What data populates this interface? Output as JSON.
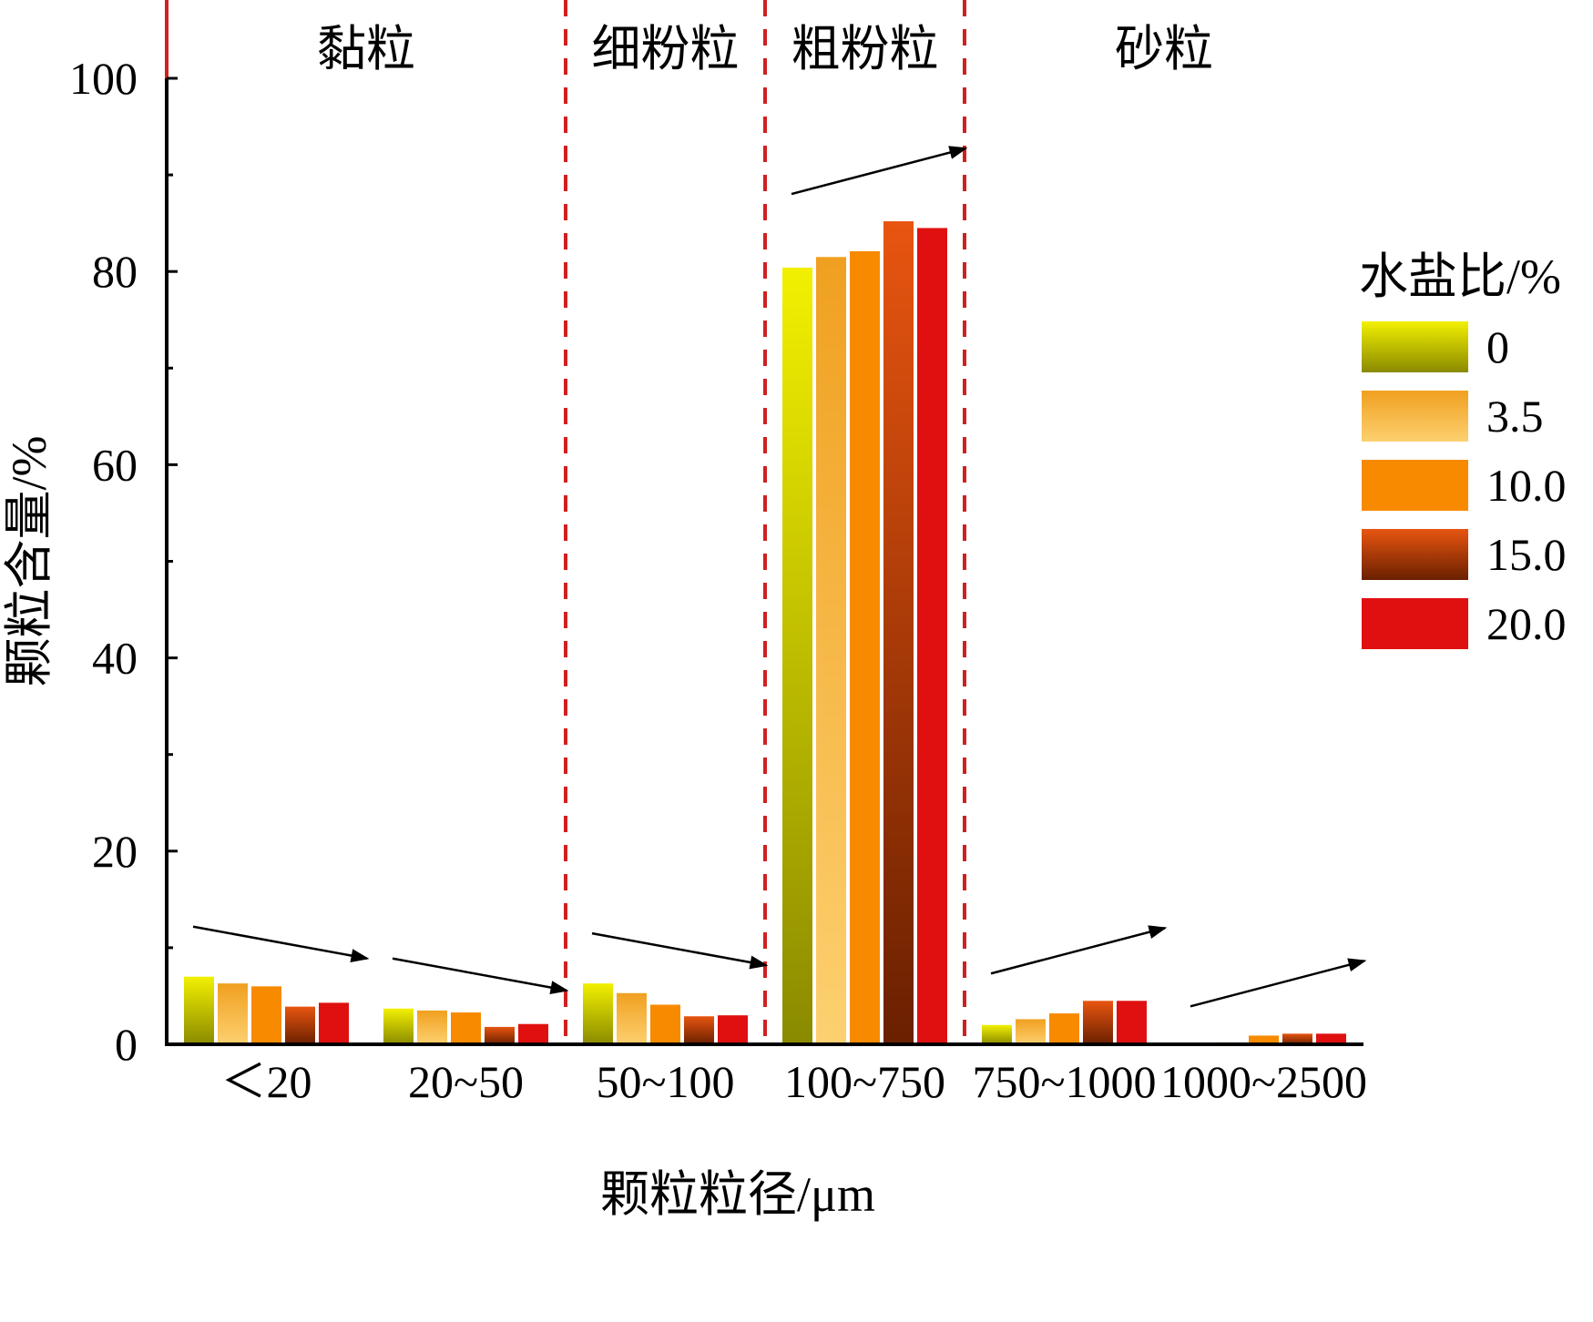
{
  "chart_data": {
    "type": "bar",
    "xlabel": "颗粒粒径/μm",
    "ylabel": "颗粒含量/%",
    "ylim": [
      0,
      100
    ],
    "yticks": [
      0,
      20,
      40,
      60,
      80,
      100
    ],
    "categories": [
      "＜20",
      "20~50",
      "50~100",
      "100~750",
      "750~1000",
      "1000~2500"
    ],
    "legend_title": "水盐比/%",
    "legend_position": "right",
    "series": [
      {
        "name": "0",
        "values": [
          7.0,
          3.7,
          6.3,
          80.4,
          2.0,
          0.1
        ],
        "color_top": "#f2f000",
        "color_bottom": "#8a8a00"
      },
      {
        "name": "3.5",
        "values": [
          6.3,
          3.5,
          5.3,
          81.5,
          2.6,
          0.2
        ],
        "color_top": "#f0a020",
        "color_bottom": "#fdd070"
      },
      {
        "name": "10.0",
        "values": [
          6.0,
          3.3,
          4.1,
          82.1,
          3.2,
          0.9
        ],
        "color_top": "#f88a00",
        "color_bottom": "#f88a00"
      },
      {
        "name": "15.0",
        "values": [
          3.9,
          1.8,
          2.9,
          85.2,
          4.5,
          1.1
        ],
        "color_top": "#e85510",
        "color_bottom": "#6a2000"
      },
      {
        "name": "20.0",
        "values": [
          4.3,
          2.1,
          3.0,
          84.5,
          4.5,
          1.1
        ],
        "color_top": "#e01010",
        "color_bottom": "#e01010"
      }
    ],
    "regions": [
      {
        "label": "黏粒",
        "from": 0,
        "to": 2
      },
      {
        "label": "细粉粒",
        "from": 2,
        "to": 3
      },
      {
        "label": "粗粉粒",
        "from": 3,
        "to": 4
      },
      {
        "label": "砂粒",
        "from": 4,
        "to": 6
      }
    ],
    "divider_color": "#d02020",
    "trend_arrows": [
      {
        "category": 0,
        "direction": "down"
      },
      {
        "category": 1,
        "direction": "down"
      },
      {
        "category": 2,
        "direction": "down"
      },
      {
        "category": 3,
        "direction": "up"
      },
      {
        "category": 4,
        "direction": "up"
      },
      {
        "category": 5,
        "direction": "up"
      }
    ]
  }
}
